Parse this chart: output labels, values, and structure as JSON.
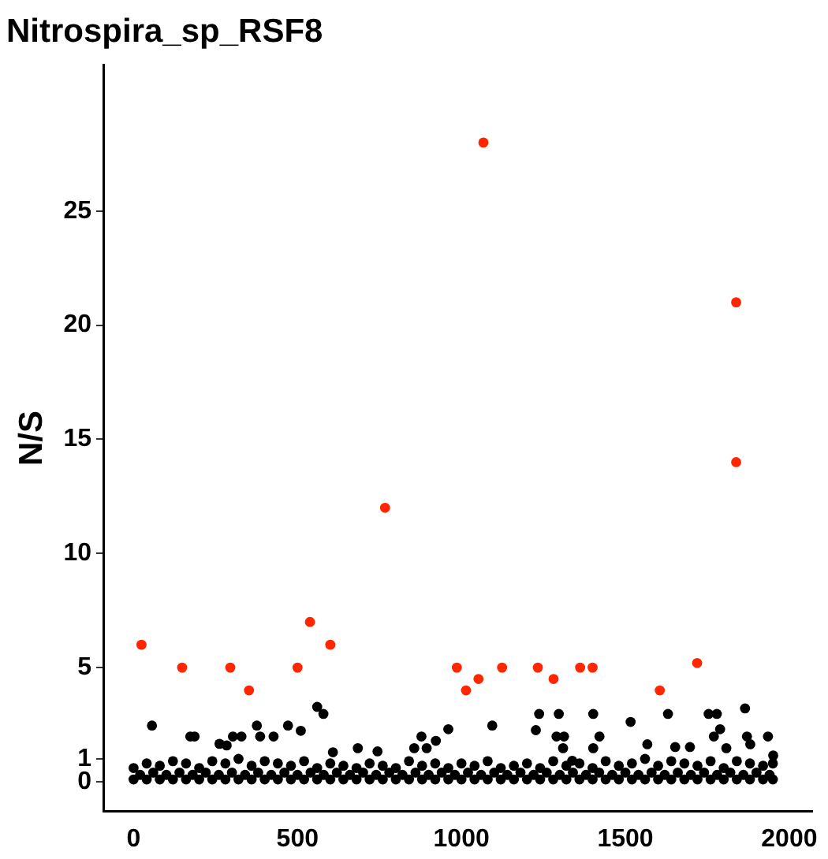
{
  "chart_data": {
    "type": "scatter",
    "title": "Nitrospira_sp_RSF8",
    "ylabel": "N/S",
    "xlim": [
      -90,
      2070
    ],
    "ylim": [
      -1.3,
      31.4
    ],
    "xticks": [
      0,
      500,
      1000,
      1500,
      2000
    ],
    "yticks": [
      0,
      1,
      5,
      10,
      15,
      20,
      25
    ],
    "grid": false,
    "legend": false,
    "marker": "circle",
    "series": [
      {
        "color": "#000000",
        "x": [
          0,
          40,
          80,
          120,
          160,
          200,
          240,
          280,
          320,
          360,
          400,
          440,
          480,
          520,
          560,
          600,
          640,
          680,
          720,
          760,
          800,
          840,
          880,
          920,
          960,
          1000,
          1040,
          1080,
          1120,
          1160,
          1200,
          1240,
          1280,
          1320,
          1360,
          1400,
          1440,
          1480,
          1520,
          1560,
          1600,
          1640,
          1680,
          1720,
          1760,
          1800,
          1840,
          1880,
          1920,
          1950,
          0,
          40,
          80,
          120,
          160,
          200,
          240,
          280,
          320,
          360,
          400,
          440,
          480,
          520,
          560,
          600,
          640,
          680,
          720,
          760,
          800,
          840,
          880,
          920,
          960,
          1000,
          1040,
          1080,
          1120,
          1160,
          1200,
          1240,
          1280,
          1320,
          1360,
          1400,
          1440,
          1480,
          1520,
          1560,
          1600,
          1640,
          1680,
          1720,
          1760,
          1800,
          1840,
          1880,
          1920,
          1950,
          20,
          60,
          100,
          140,
          180,
          220,
          260,
          300,
          340,
          380,
          420,
          460,
          500,
          540,
          580,
          620,
          660,
          700,
          740,
          780,
          820,
          860,
          900,
          940,
          980,
          1020,
          1060,
          1100,
          1140,
          1180,
          1220,
          1260,
          1300,
          1340,
          1380,
          1420,
          1460,
          1500,
          1540,
          1580,
          1620,
          1660,
          1700,
          1740,
          1780,
          1820,
          1860,
          1900,
          1940,
          56,
          173,
          186,
          262,
          284,
          303,
          329,
          376,
          386,
          427,
          471,
          510,
          560,
          579,
          608,
          684,
          744,
          856,
          878,
          894,
          922,
          960,
          1094,
          1227,
          1237,
          1297,
          1290,
          1313,
          1310,
          1338,
          1402,
          1402,
          1421,
          1516,
          1567,
          1630,
          1652,
          1697,
          1754,
          1779,
          1770,
          1789,
          1808,
          1865,
          1871,
          1881,
          1935,
          1951
        ],
        "values": [
          0.1,
          0.1,
          0.1,
          0.1,
          0.1,
          0.1,
          0.1,
          0.1,
          0.1,
          0.1,
          0.1,
          0.1,
          0.1,
          0.1,
          0.1,
          0.1,
          0.1,
          0.1,
          0.1,
          0.1,
          0.1,
          0.1,
          0.1,
          0.1,
          0.1,
          0.1,
          0.1,
          0.1,
          0.1,
          0.1,
          0.1,
          0.1,
          0.1,
          0.1,
          0.1,
          0.1,
          0.1,
          0.1,
          0.1,
          0.1,
          0.1,
          0.1,
          0.1,
          0.1,
          0.1,
          0.1,
          0.1,
          0.1,
          0.1,
          0.1,
          0.6,
          0.8,
          0.7,
          0.9,
          0.8,
          0.6,
          0.9,
          0.8,
          1.0,
          0.7,
          0.9,
          0.8,
          0.7,
          0.9,
          0.6,
          0.8,
          0.7,
          0.6,
          0.8,
          0.7,
          0.6,
          0.9,
          0.7,
          0.8,
          0.6,
          0.8,
          0.7,
          0.9,
          0.6,
          0.7,
          0.8,
          0.6,
          0.9,
          0.7,
          0.8,
          0.6,
          0.9,
          0.7,
          0.8,
          1.0,
          0.7,
          0.9,
          0.8,
          0.7,
          0.9,
          0.6,
          0.9,
          0.8,
          0.7,
          0.8,
          0.3,
          0.4,
          0.3,
          0.4,
          0.3,
          0.4,
          0.3,
          0.4,
          0.3,
          0.4,
          0.3,
          0.4,
          0.3,
          0.4,
          0.3,
          0.4,
          0.3,
          0.4,
          0.3,
          0.4,
          0.3,
          0.4,
          0.3,
          0.4,
          0.3,
          0.4,
          0.3,
          0.4,
          0.3,
          0.4,
          0.3,
          0.4,
          0.3,
          0.4,
          0.3,
          0.4,
          0.3,
          0.4,
          0.3,
          0.4,
          0.3,
          0.4,
          0.3,
          0.4,
          0.3,
          0.4,
          0.3,
          0.4,
          0.3,
          2.46,
          1.98,
          1.98,
          1.66,
          1.59,
          1.98,
          1.98,
          2.46,
          1.98,
          1.98,
          2.46,
          2.23,
          3.28,
          2.97,
          1.29,
          1.47,
          1.33,
          1.47,
          1.98,
          1.47,
          1.79,
          2.3,
          2.46,
          2.26,
          2.97,
          2.97,
          1.98,
          1.98,
          1.47,
          0.92,
          2.97,
          1.47,
          1.98,
          2.62,
          1.64,
          2.97,
          1.52,
          1.52,
          2.97,
          2.97,
          1.98,
          2.3,
          1.47,
          3.21,
          1.98,
          1.64,
          1.98,
          1.15
        ]
      },
      {
        "color": "#ff2600",
        "x": [
          24,
          148,
          295,
          352,
          500,
          538,
          600,
          767,
          986,
          1014,
          1052,
          1067,
          1124,
          1233,
          1281,
          1362,
          1400,
          1605,
          1719,
          1838,
          1838
        ],
        "values": [
          6,
          5,
          5,
          4,
          5,
          7,
          6,
          12,
          5,
          4,
          4.5,
          28,
          5,
          5,
          4.5,
          5,
          5,
          4,
          5.2,
          21,
          14
        ]
      }
    ]
  }
}
